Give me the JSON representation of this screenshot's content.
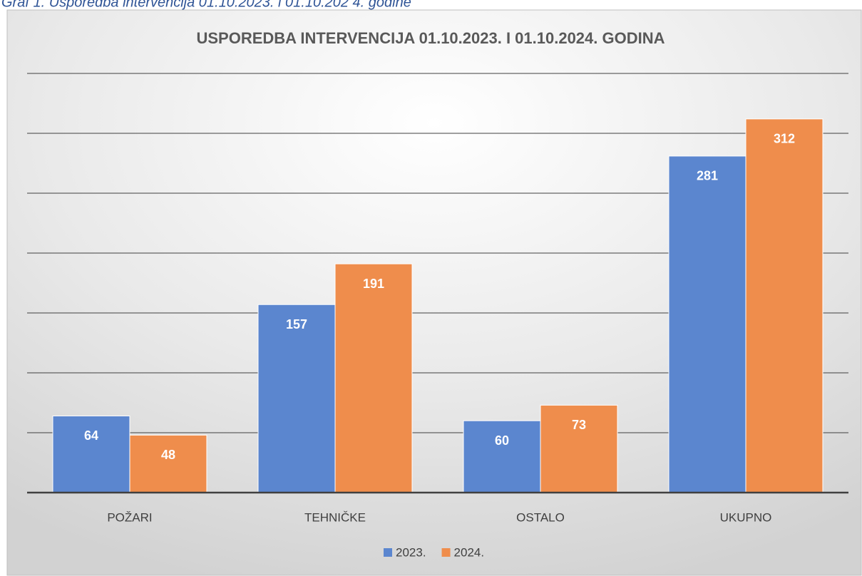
{
  "caption": "Graf 1. Usporedba intervencija 01.10.2023. i 01.10.202 4. godine",
  "chart_data": {
    "type": "bar",
    "title": "USPOREDBA INTERVENCIJA 01.10.2023. I 01.10.2024. GODINA",
    "categories": [
      "POŽARI",
      "TEHNIČKE",
      "OSTALO",
      "UKUPNO"
    ],
    "series": [
      {
        "name": "2023.",
        "color": "#5b86cf",
        "values": [
          64,
          157,
          60,
          281
        ]
      },
      {
        "name": "2024.",
        "color": "#ef8d4c",
        "values": [
          48,
          191,
          73,
          312
        ]
      }
    ],
    "ylim": [
      0,
      350
    ],
    "yticks": [
      0,
      50,
      100,
      150,
      200,
      250,
      300,
      350
    ],
    "grid": true,
    "legend": "bottom"
  }
}
